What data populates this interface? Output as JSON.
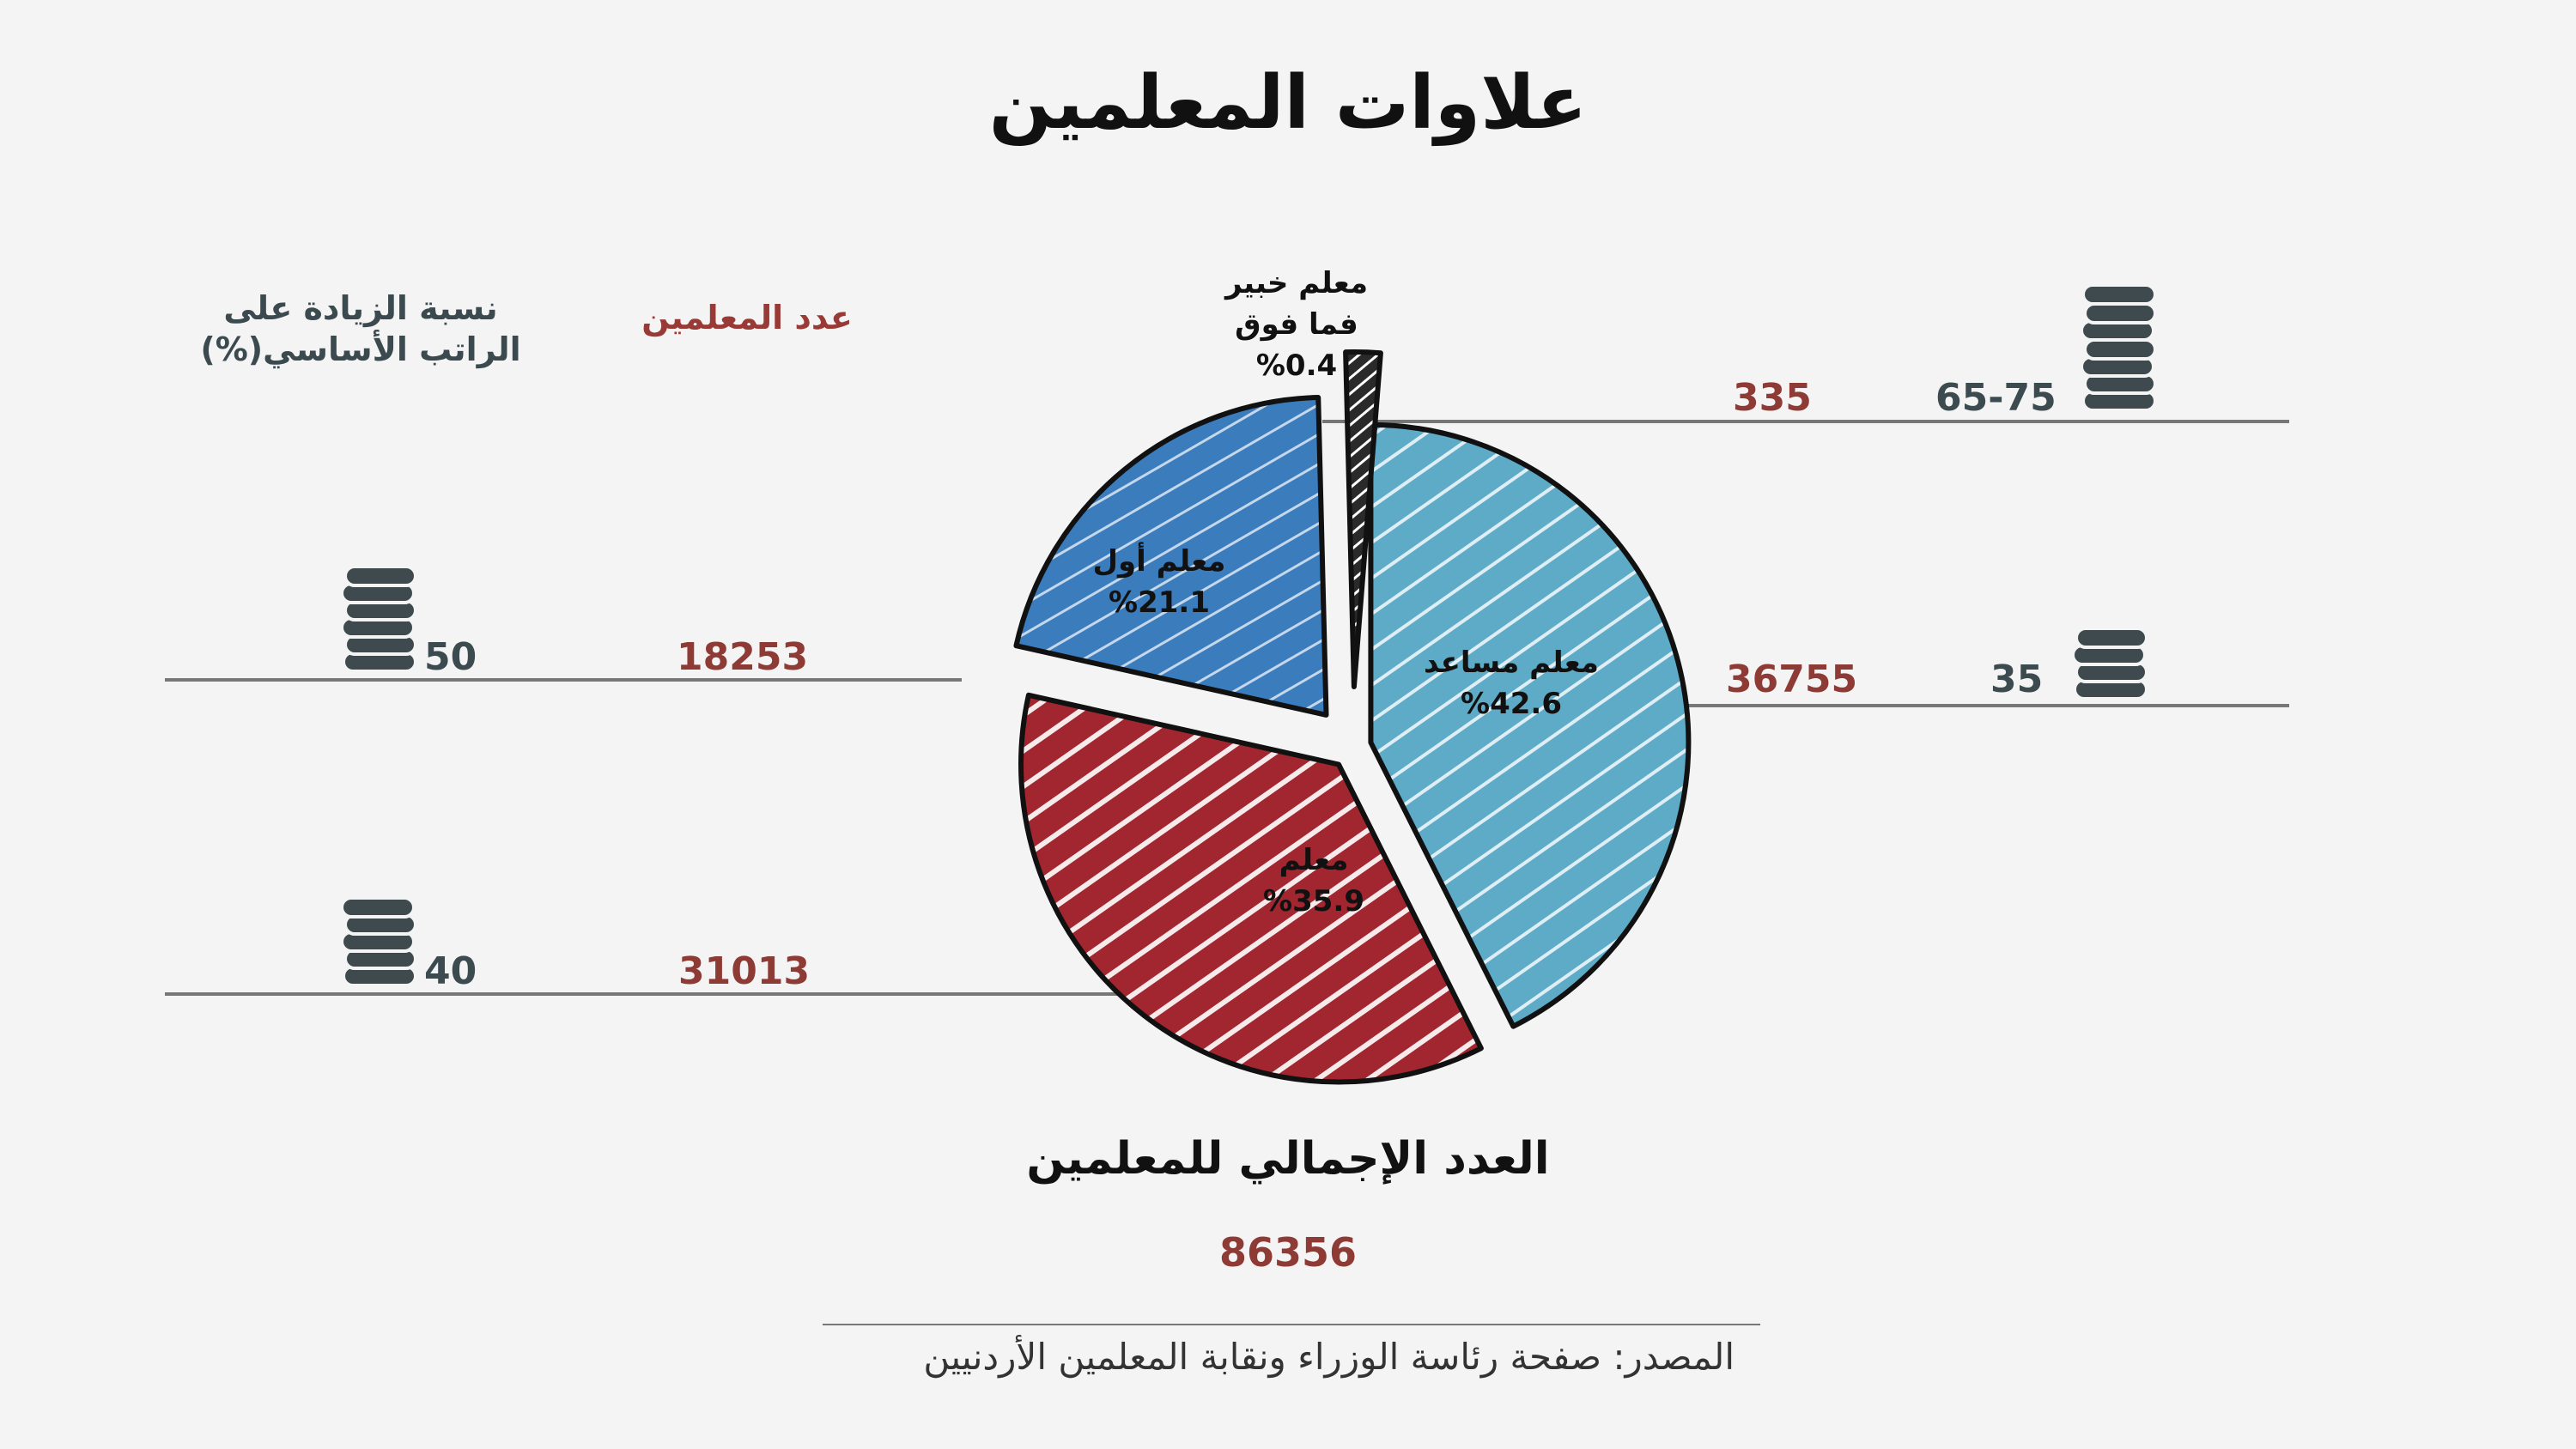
{
  "chart_data": {
    "type": "pie",
    "title": "علاوات المعلمين",
    "column_headers": {
      "raise_percent": "نسبة الزيادة على الراتب الأساسي(%)",
      "teacher_count": "عدد المعلمين"
    },
    "slices": [
      {
        "name": "معلم مساعد",
        "percent_label": "%42.6",
        "value": 42.6,
        "count": "36755",
        "raise": "35",
        "color": "#5eabc8"
      },
      {
        "name": "معلم",
        "percent_label": "%35.9",
        "value": 35.9,
        "count": "31013",
        "raise": "40",
        "color": "#a1262f"
      },
      {
        "name": "معلم أول",
        "percent_label": "%21.1",
        "value": 21.1,
        "count": "18253",
        "raise": "50",
        "color": "#3b7cbd"
      },
      {
        "name": "معلم خبير فما فوق",
        "name_lines": [
          "معلم خبير",
          "فما فوق"
        ],
        "percent_label": "%0.4",
        "value": 0.4,
        "count": "335",
        "raise": "65-75",
        "color": "#2a2a2a"
      }
    ],
    "total": {
      "label": "العدد الإجمالي للمعلمين",
      "value": "86356"
    },
    "source": "المصدر: صفحة رئاسة الوزراء ونقابة المعلمين الأردنيين"
  },
  "colors": {
    "count_text": "#8e3a35",
    "raise_text": "#3c4b4f",
    "rule": "#777777",
    "coin": "#3e4a4d"
  },
  "icons": {
    "coin_stack": "coin-stack-icon"
  }
}
